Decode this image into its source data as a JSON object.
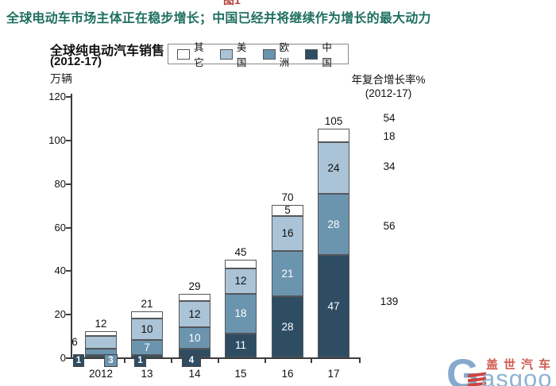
{
  "header": {
    "figure_label": "图1",
    "title": "全球电动车市场主体正在稳步增长；中国已经并将继续作为增长的最大动力"
  },
  "chart": {
    "title_line1": "全球纯电动汽车销售",
    "title_line2": "(2012-17)",
    "unit_label": "万辆"
  },
  "legend": {
    "items": [
      {
        "label": "其它",
        "color": "#ffffff"
      },
      {
        "label": "美国",
        "color": "#aac3d6"
      },
      {
        "label": "欧洲",
        "color": "#6b94ae"
      },
      {
        "label": "中国",
        "color": "#2e4d63"
      }
    ]
  },
  "cagr_panel": {
    "header_line1": "年复合增长率%",
    "header_line2": "(2012-17)",
    "values": [
      "54",
      "18",
      "34",
      "56",
      "139"
    ]
  },
  "watermark": {
    "brand_cn": "盖世汽车",
    "brand_en_initial": "G",
    "brand_en_rest": "asgoo"
  },
  "chart_data": {
    "type": "bar",
    "stacked": true,
    "title": "全球纯电动汽车销售 (2012-17)",
    "ylabel": "万辆",
    "ylim": [
      0,
      120
    ],
    "yticks": [
      0,
      20,
      40,
      60,
      80,
      100,
      120
    ],
    "grid": false,
    "legend_position": "top",
    "categories": [
      "2012",
      "13",
      "14",
      "15",
      "16",
      "17"
    ],
    "series": [
      {
        "name": "中国",
        "color": "#2e4d63",
        "values": [
          1,
          1,
          4,
          11,
          28,
          47
        ]
      },
      {
        "name": "欧洲",
        "color": "#6b94ae",
        "values": [
          3,
          7,
          10,
          18,
          21,
          28
        ]
      },
      {
        "name": "美国",
        "color": "#aac3d6",
        "values": [
          6,
          10,
          12,
          12,
          16,
          24
        ]
      },
      {
        "name": "其它",
        "color": "#ffffff",
        "values": [
          2,
          3,
          3,
          4,
          5,
          6
        ]
      }
    ],
    "totals": [
      12,
      21,
      29,
      45,
      70,
      105
    ],
    "cagr_2012_17_percent": {
      "total": 54,
      "其它": 18,
      "美国": 34,
      "欧洲": 56,
      "中国": 139
    }
  }
}
